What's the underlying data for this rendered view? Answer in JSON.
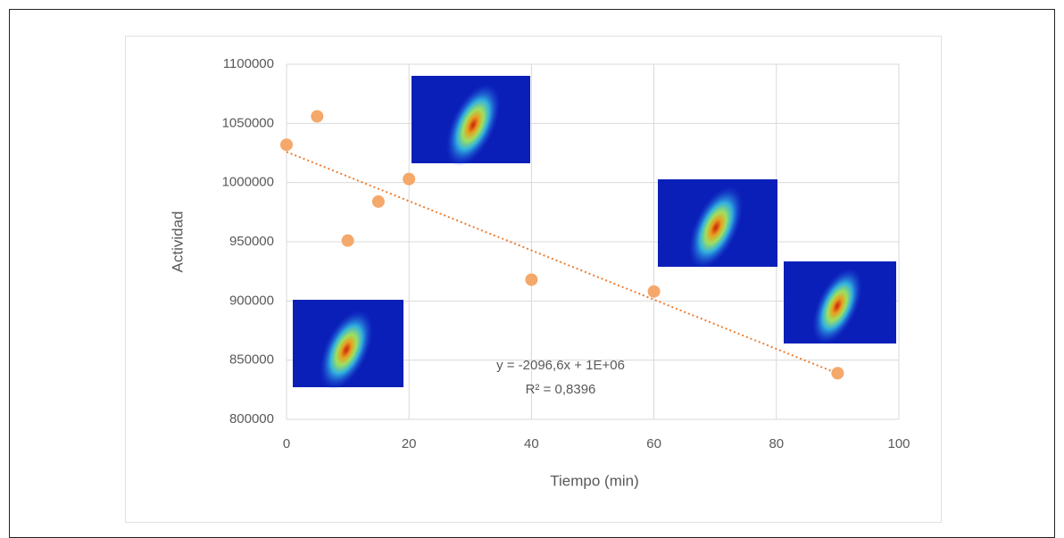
{
  "chart_data": {
    "type": "scatter",
    "x_label": "Tiempo (min)",
    "y_label": "Actividad",
    "x": [
      0,
      5,
      10,
      15,
      20,
      40,
      60,
      90
    ],
    "values": [
      1032000,
      1056000,
      951000,
      984000,
      1003000,
      918000,
      908000,
      839000
    ],
    "color": "#f4a86a",
    "trendline": {
      "x": [
        0,
        90
      ],
      "values": [
        1026000,
        838700
      ],
      "color": "#ed7d31"
    },
    "annotations": [
      "y = -2096,6x + 1E+06",
      "R² = 0,8396"
    ],
    "xlim": [
      0,
      100
    ],
    "xticks": [
      0,
      20,
      40,
      60,
      80,
      100
    ],
    "ylim": [
      800000,
      1100000
    ],
    "yticks": [
      800000,
      850000,
      900000,
      950000,
      1000000,
      1050000,
      1100000
    ],
    "grid": true
  }
}
